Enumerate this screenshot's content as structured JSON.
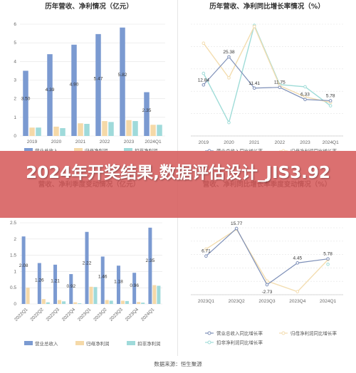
{
  "banner": {
    "title": "2024年开奖结果,数据评估设计_JIS3.92"
  },
  "source": "数据来源：恒生聚源",
  "colors": {
    "revenue": "#7b9ad1",
    "parent_np": "#f5d9a8",
    "deducted_np": "#9fdada",
    "rev_growth_line": "#7d8fb8",
    "np_growth_line": "#f3ddb0",
    "ded_growth_line": "#9fdcd8",
    "grid": "#e3e3e3"
  },
  "chart_data": [
    {
      "type": "bar",
      "title": "历年营收、净利情况（亿元）",
      "categories": [
        "2019",
        "2020",
        "2021",
        "2022",
        "2023",
        "2024Q1"
      ],
      "ylim": [
        0,
        6
      ],
      "yticks": [
        0,
        1,
        2,
        3,
        4,
        5,
        6
      ],
      "series": [
        {
          "name": "营业总收入",
          "values": [
            3.5,
            4.39,
            4.9,
            5.47,
            5.82,
            2.35
          ],
          "labels": [
            "3.50",
            "4.39",
            "4.90",
            "5.47",
            "5.82",
            "2.35"
          ]
        },
        {
          "name": "归母净利润",
          "values": [
            0.45,
            0.5,
            0.68,
            0.8,
            0.85,
            0.6
          ]
        },
        {
          "name": "扣非净利润",
          "values": [
            0.45,
            0.42,
            0.65,
            0.75,
            0.8,
            0.6
          ]
        }
      ]
    },
    {
      "type": "line",
      "title": "历年营收、净利同比增长率情况（%）",
      "categories": [
        "2019",
        "2020",
        "2021",
        "2022",
        "2023",
        "2024Q1"
      ],
      "ylim": [
        -10,
        40
      ],
      "yticks": [
        -10,
        0,
        10,
        20,
        30,
        40
      ],
      "series": [
        {
          "name": "营业总收入同比增长率",
          "values": [
            12.84,
            25.38,
            11.41,
            11.75,
            6.33,
            5.78
          ],
          "labels": [
            "12.84",
            "25.38",
            "11.41",
            "11.75",
            "6.33",
            "5.78"
          ]
        },
        {
          "name": "归母净利润同比增长率",
          "values": [
            31.5,
            16.0,
            39.0,
            12.5,
            7.5,
            5.0
          ]
        },
        {
          "name": "扣非净利润同比增长率",
          "values": [
            18.0,
            -4.0,
            39.5,
            13.0,
            12.0,
            3.5
          ]
        }
      ]
    },
    {
      "type": "bar",
      "title": "营收、净利季度变动情况（亿元）",
      "categories": [
        "2022Q1",
        "2022Q2",
        "2022Q3",
        "2022Q4",
        "2023Q1",
        "2023Q2",
        "2023Q3",
        "2023Q4",
        "2024Q1"
      ],
      "ylim": [
        0,
        2.5
      ],
      "yticks": [
        0,
        0.5,
        1,
        1.5,
        2,
        2.5
      ],
      "series": [
        {
          "name": "营业总收入",
          "values": [
            2.08,
            1.26,
            1.21,
            0.92,
            2.22,
            1.46,
            1.18,
            0.96,
            2.35
          ],
          "labels": [
            "2.08",
            "1.26",
            "1.21",
            "0.92",
            "2.22",
            "1.46",
            "1.18",
            "0.96",
            "2.35"
          ]
        },
        {
          "name": "归母净利润",
          "values": [
            0.5,
            0.15,
            0.12,
            0.05,
            0.53,
            0.12,
            0.1,
            0.06,
            0.58
          ]
        },
        {
          "name": "扣非净利润",
          "values": [
            0.0,
            0.05,
            0.08,
            0.02,
            0.52,
            0.1,
            0.09,
            0.04,
            0.56
          ]
        }
      ]
    },
    {
      "type": "line",
      "title": "营收、净利同比增长率季度变动情况（%）",
      "categories": [
        "2023Q1",
        "2023Q2",
        "2023Q3",
        "2023Q4",
        "2024Q1"
      ],
      "ylim": [
        -6,
        16
      ],
      "yticks": [],
      "series": [
        {
          "name": "营业总收入同比增长率",
          "values": [
            6.71,
            15.77,
            -2.73,
            4.45,
            5.78
          ],
          "labels": [
            "6.71",
            "15.77",
            "-2.73",
            "4.45",
            "5.78"
          ]
        },
        {
          "name": "归母净利润同比增长率",
          "values": [
            9.0,
            15.5,
            -1.5,
            -5.0,
            5.5
          ]
        },
        {
          "name": "扣非净利润同比增长率",
          "values": [
            null,
            null,
            null,
            null,
            4.0
          ]
        }
      ]
    }
  ]
}
